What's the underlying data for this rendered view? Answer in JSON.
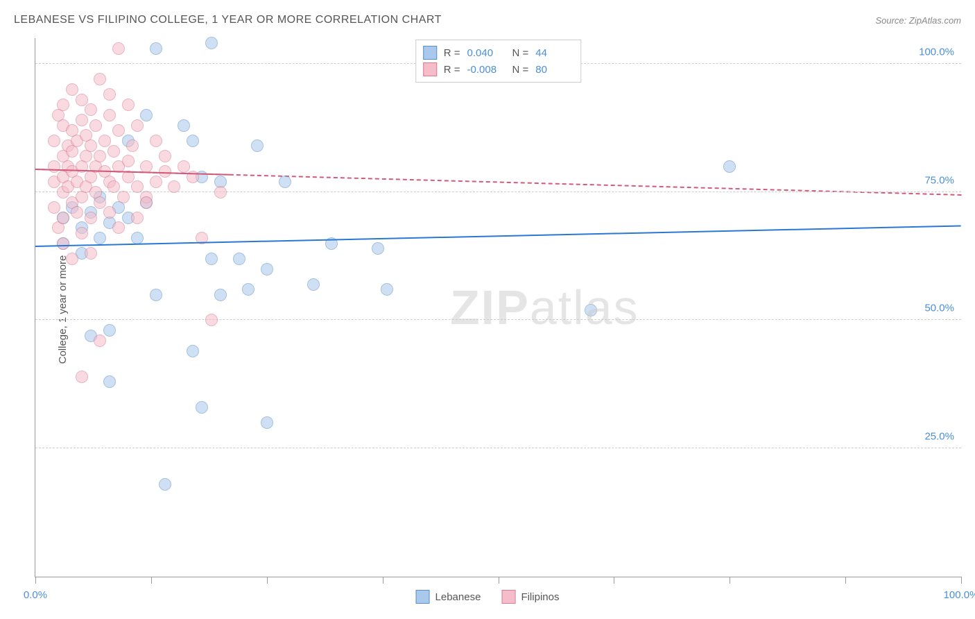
{
  "title": "LEBANESE VS FILIPINO COLLEGE, 1 YEAR OR MORE CORRELATION CHART",
  "source": "Source: ZipAtlas.com",
  "y_axis_label": "College, 1 year or more",
  "watermark": {
    "bold": "ZIP",
    "light": "atlas"
  },
  "chart": {
    "type": "scatter",
    "xlim": [
      0,
      100
    ],
    "ylim": [
      0,
      105
    ],
    "x_ticks": [
      0,
      12.5,
      25,
      37.5,
      50,
      62.5,
      75,
      87.5,
      100
    ],
    "x_tick_labels": {
      "0": "0.0%",
      "100": "100.0%"
    },
    "y_gridlines": [
      25,
      50,
      75,
      100
    ],
    "y_tick_labels": {
      "25": "25.0%",
      "50": "50.0%",
      "75": "75.0%",
      "100": "100.0%"
    },
    "background_color": "#ffffff",
    "grid_color": "#cccccc",
    "axis_color": "#999999",
    "tick_label_color": "#4a8fd8",
    "point_radius": 9,
    "point_opacity": 0.55,
    "series": [
      {
        "name": "Lebanese",
        "fill_color": "#a8c8ec",
        "stroke_color": "#5b8fc7",
        "R": "0.040",
        "N": "44",
        "trendline": {
          "y_start": 64.5,
          "y_end": 68.5,
          "x_solid_end": 100,
          "color": "#2878d4"
        },
        "points": [
          [
            3,
            70
          ],
          [
            3,
            65
          ],
          [
            4,
            72
          ],
          [
            5,
            68
          ],
          [
            5,
            63
          ],
          [
            6,
            71
          ],
          [
            6,
            47
          ],
          [
            7,
            74
          ],
          [
            7,
            66
          ],
          [
            8,
            69
          ],
          [
            8,
            48
          ],
          [
            8,
            38
          ],
          [
            9,
            72
          ],
          [
            10,
            70
          ],
          [
            10,
            85
          ],
          [
            11,
            66
          ],
          [
            12,
            90
          ],
          [
            12,
            73
          ],
          [
            13,
            103
          ],
          [
            13,
            55
          ],
          [
            14,
            18
          ],
          [
            16,
            88
          ],
          [
            17,
            85
          ],
          [
            17,
            44
          ],
          [
            18,
            78
          ],
          [
            18,
            33
          ],
          [
            19,
            104
          ],
          [
            19,
            62
          ],
          [
            20,
            77
          ],
          [
            20,
            55
          ],
          [
            22,
            62
          ],
          [
            23,
            56
          ],
          [
            24,
            84
          ],
          [
            25,
            60
          ],
          [
            25,
            30
          ],
          [
            27,
            77
          ],
          [
            30,
            57
          ],
          [
            32,
            65
          ],
          [
            37,
            64
          ],
          [
            38,
            56
          ],
          [
            60,
            52
          ],
          [
            75,
            80
          ]
        ]
      },
      {
        "name": "Filipinos",
        "fill_color": "#f5bcc9",
        "stroke_color": "#d87a94",
        "R": "-0.008",
        "N": "80",
        "trendline": {
          "y_start": 79.5,
          "y_end": 74.5,
          "x_solid_end": 21,
          "color": "#d15a7a"
        },
        "points": [
          [
            2,
            80
          ],
          [
            2,
            77
          ],
          [
            2,
            85
          ],
          [
            2,
            72
          ],
          [
            2.5,
            90
          ],
          [
            2.5,
            68
          ],
          [
            3,
            82
          ],
          [
            3,
            78
          ],
          [
            3,
            75
          ],
          [
            3,
            88
          ],
          [
            3,
            65
          ],
          [
            3,
            92
          ],
          [
            3,
            70
          ],
          [
            3.5,
            84
          ],
          [
            3.5,
            76
          ],
          [
            3.5,
            80
          ],
          [
            4,
            87
          ],
          [
            4,
            73
          ],
          [
            4,
            79
          ],
          [
            4,
            95
          ],
          [
            4,
            62
          ],
          [
            4,
            83
          ],
          [
            4.5,
            77
          ],
          [
            4.5,
            85
          ],
          [
            4.5,
            71
          ],
          [
            5,
            80
          ],
          [
            5,
            89
          ],
          [
            5,
            74
          ],
          [
            5,
            67
          ],
          [
            5,
            93
          ],
          [
            5,
            39
          ],
          [
            5.5,
            82
          ],
          [
            5.5,
            76
          ],
          [
            5.5,
            86
          ],
          [
            6,
            78
          ],
          [
            6,
            70
          ],
          [
            6,
            84
          ],
          [
            6,
            91
          ],
          [
            6,
            63
          ],
          [
            6.5,
            80
          ],
          [
            6.5,
            75
          ],
          [
            6.5,
            88
          ],
          [
            7,
            82
          ],
          [
            7,
            73
          ],
          [
            7,
            46
          ],
          [
            7,
            97
          ],
          [
            7.5,
            79
          ],
          [
            7.5,
            85
          ],
          [
            8,
            77
          ],
          [
            8,
            71
          ],
          [
            8,
            90
          ],
          [
            8,
            94
          ],
          [
            8.5,
            83
          ],
          [
            8.5,
            76
          ],
          [
            9,
            80
          ],
          [
            9,
            68
          ],
          [
            9,
            87
          ],
          [
            9,
            103
          ],
          [
            9.5,
            74
          ],
          [
            10,
            81
          ],
          [
            10,
            78
          ],
          [
            10,
            92
          ],
          [
            10.5,
            84
          ],
          [
            11,
            76
          ],
          [
            11,
            70
          ],
          [
            11,
            88
          ],
          [
            12,
            80
          ],
          [
            12,
            74
          ],
          [
            12,
            73
          ],
          [
            13,
            85
          ],
          [
            13,
            77
          ],
          [
            14,
            79
          ],
          [
            14,
            82
          ],
          [
            15,
            76
          ],
          [
            16,
            80
          ],
          [
            17,
            78
          ],
          [
            18,
            66
          ],
          [
            20,
            75
          ],
          [
            19,
            50
          ]
        ]
      }
    ]
  },
  "legend_bottom": [
    {
      "label": "Lebanese",
      "fill": "#a8c8ec",
      "stroke": "#5b8fc7"
    },
    {
      "label": "Filipinos",
      "fill": "#f5bcc9",
      "stroke": "#d87a94"
    }
  ]
}
